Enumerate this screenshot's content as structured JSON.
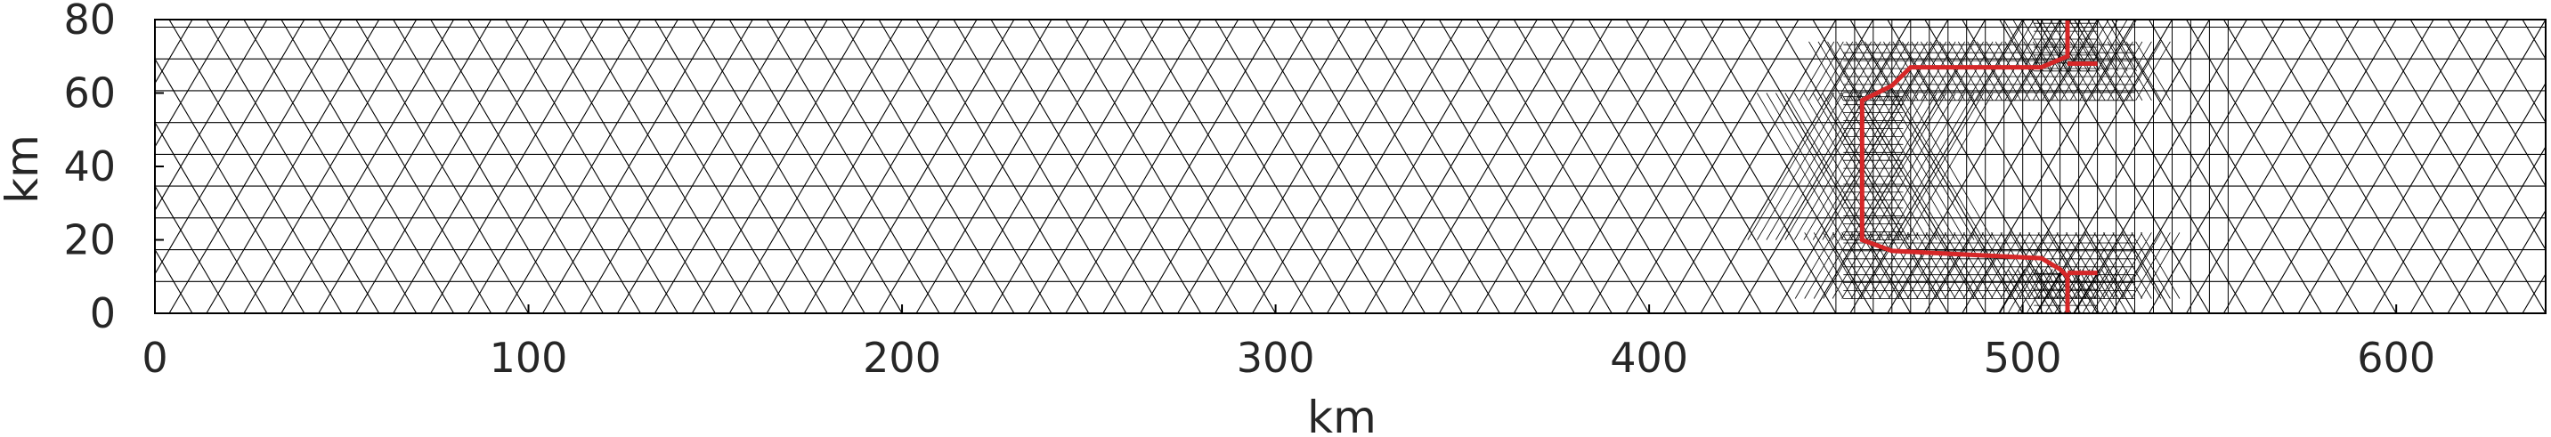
{
  "chart_data": {
    "type": "triangular-mesh",
    "xlabel": "km",
    "ylabel": "km",
    "xlim": [
      0,
      640
    ],
    "ylim": [
      0,
      80
    ],
    "xticks": [
      0,
      100,
      200,
      300,
      400,
      500,
      600
    ],
    "yticks": [
      0,
      20,
      40,
      60,
      80
    ],
    "xtick_labels": [
      "0",
      "100",
      "200",
      "300",
      "400",
      "500",
      "600"
    ],
    "ytick_labels": [
      "0",
      "20",
      "40",
      "60",
      "80"
    ],
    "mesh_color": "#000000",
    "fault_color": "#d62728",
    "mesh_element_size_km": 10,
    "refined_zone": {
      "x": [
        450,
        555
      ],
      "y": [
        0,
        80
      ]
    },
    "fault_trace": [
      [
        512,
        80
      ],
      [
        512,
        70
      ],
      [
        505,
        67
      ],
      [
        470,
        67
      ],
      [
        465,
        62
      ],
      [
        457,
        58
      ],
      [
        457,
        20
      ],
      [
        465,
        17
      ],
      [
        505,
        15
      ],
      [
        510,
        12
      ],
      [
        512,
        10
      ],
      [
        512,
        0
      ]
    ],
    "fault_splays": [
      {
        "x": [
          512,
          520
        ],
        "y": [
          68,
          68
        ]
      },
      {
        "x": [
          512,
          520
        ],
        "y": [
          11,
          11
        ]
      }
    ]
  }
}
